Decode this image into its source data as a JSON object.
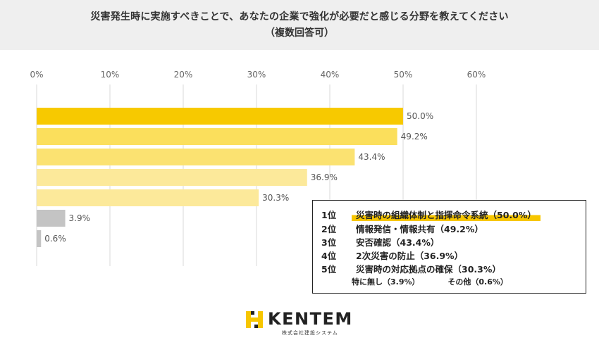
{
  "header": {
    "title_line1": "災害発生時に実施すべきことで、あなたの企業で強化が必要だと感じる分野を教えてください",
    "title_line2": "（複数回答可）"
  },
  "chart_data": {
    "type": "bar",
    "orientation": "horizontal",
    "title": "災害発生時に実施すべきことで、あなたの企業で強化が必要だと感じる分野を教えてください（複数回答可）",
    "xlim": [
      0,
      60
    ],
    "xticks": [
      "0%",
      "10%",
      "20%",
      "30%",
      "40%",
      "50%",
      "60%"
    ],
    "xtick_values": [
      0,
      10,
      20,
      30,
      40,
      50,
      60
    ],
    "grid": true,
    "categories": [
      "災害時の組織体制と指揮命令系統",
      "情報発信・情報共有",
      "安否確認",
      "2次災害の防止",
      "災害時の対応拠点の確保",
      "特に無し",
      "その他"
    ],
    "values": [
      50.0,
      49.2,
      43.4,
      36.9,
      30.3,
      3.9,
      0.6
    ],
    "value_labels": [
      "50.0%",
      "49.2%",
      "43.4%",
      "36.9%",
      "30.3%",
      "3.9%",
      "0.6%"
    ],
    "colors": [
      "#f7c900",
      "#fbdf5c",
      "#fbe271",
      "#fce99a",
      "#fce99a",
      "#c4c4c4",
      "#c4c4c4"
    ]
  },
  "legend": {
    "ranks": [
      {
        "rank": "1位",
        "text": "災害時の組織体制と指揮命令系統（50.0%）",
        "highlight": true
      },
      {
        "rank": "2位",
        "text": "情報発信・情報共有（49.2%）",
        "highlight": false
      },
      {
        "rank": "3位",
        "text": "安否確認（43.4%）",
        "highlight": false
      },
      {
        "rank": "4位",
        "text": "2次災害の防止（36.9%）",
        "highlight": false
      },
      {
        "rank": "5位",
        "text": "災害時の対応拠点の確保（30.3%）",
        "highlight": false
      }
    ],
    "others": [
      "特に無し（3.9%）",
      "その他（0.6%）"
    ]
  },
  "logo": {
    "word": "KENTEM",
    "sub": "株式会社建設システム",
    "accent_color": "#f7c600"
  }
}
